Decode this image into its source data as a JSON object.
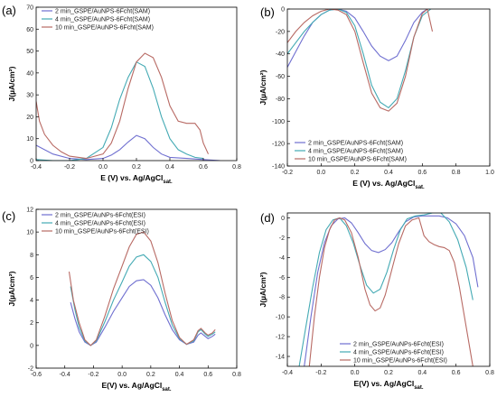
{
  "colors": {
    "blue": "#6f6fd0",
    "teal": "#44aab4",
    "red": "#b86a64",
    "axis": "#000000"
  },
  "chart_data": [
    {
      "panel": "(a)",
      "type": "line",
      "xlabel": "E (V) vs. Ag/AgCl",
      "xlabel_sub": "sat.",
      "ylabel": "J(µA/cm²)",
      "xlim": [
        -0.4,
        0.8
      ],
      "ylim": [
        0,
        70
      ],
      "xticks": [
        -0.4,
        -0.2,
        0.0,
        0.2,
        0.4,
        0.6,
        0.8
      ],
      "yticks": [
        0,
        10,
        20,
        30,
        40,
        50,
        60,
        70
      ],
      "xtick_labels": [
        "-0.4",
        "-0.2",
        "0.0",
        "0.2",
        "0.4",
        "0.6",
        "0.8"
      ],
      "ytick_labels": [
        "0",
        "10",
        "20",
        "30",
        "40",
        "50",
        "60",
        "70"
      ],
      "legend_position": "top-left",
      "series": [
        {
          "name": "2 min_GSPE/AuNPS-6Fcht(SAM)",
          "color": "blue",
          "x": [
            -0.4,
            -0.3,
            -0.2,
            -0.1,
            0.0,
            0.05,
            0.1,
            0.15,
            0.2,
            0.25,
            0.3,
            0.35,
            0.4,
            0.5,
            0.6,
            0.7
          ],
          "y": [
            7,
            3,
            1,
            0.5,
            1,
            2.5,
            5,
            8.5,
            11.5,
            10,
            6,
            3,
            1.5,
            1,
            0.5,
            0
          ]
        },
        {
          "name": "4 min_GSPE/AuNPS-6Fcht(SAM)",
          "color": "teal",
          "x": [
            -0.4,
            -0.3,
            -0.2,
            -0.1,
            0.0,
            0.05,
            0.1,
            0.15,
            0.2,
            0.25,
            0.3,
            0.35,
            0.4,
            0.45,
            0.5,
            0.55,
            0.6
          ],
          "y": [
            0.5,
            0,
            0,
            1,
            6,
            15,
            28,
            38,
            45,
            43,
            33,
            20,
            10,
            5,
            3,
            1.5,
            1
          ]
        },
        {
          "name": "10 min_GSPE/AuNPS-6Fcht(SAM)",
          "color": "red",
          "x": [
            -0.4,
            -0.38,
            -0.35,
            -0.3,
            -0.25,
            -0.2,
            -0.1,
            0.0,
            0.05,
            0.1,
            0.15,
            0.2,
            0.25,
            0.3,
            0.35,
            0.4,
            0.45,
            0.5,
            0.55,
            0.58,
            0.6,
            0.63
          ],
          "y": [
            27,
            18,
            12,
            7,
            4,
            2,
            1,
            3,
            8,
            18,
            33,
            45,
            49,
            47,
            38,
            25,
            18,
            17,
            17,
            14,
            8,
            3
          ]
        }
      ]
    },
    {
      "panel": "(b)",
      "type": "line",
      "xlabel": "E (V) vs. Ag/AgCl",
      "xlabel_sub": "sat.",
      "ylabel": "J(µA/cm²)",
      "xlim": [
        -0.2,
        1.0
      ],
      "ylim": [
        -140,
        0
      ],
      "xticks": [
        -0.2,
        0.0,
        0.2,
        0.4,
        0.6,
        0.8,
        1.0
      ],
      "yticks": [
        -140,
        -120,
        -100,
        -80,
        -60,
        -40,
        -20,
        0
      ],
      "xtick_labels": [
        "-0.2",
        "0.0",
        "0.2",
        "0.4",
        "0.6",
        "0.8",
        "1.0"
      ],
      "ytick_labels": [
        "-140",
        "-120",
        "-100",
        "-80",
        "-60",
        "-40",
        "-20",
        "0"
      ],
      "legend_position": "bottom-left",
      "series": [
        {
          "name": "2 min_GSPE/AuNPS-6Fcht(SAM)",
          "color": "blue",
          "x": [
            -0.2,
            -0.15,
            -0.1,
            -0.05,
            0.0,
            0.05,
            0.1,
            0.15,
            0.2,
            0.25,
            0.3,
            0.35,
            0.4,
            0.45,
            0.5,
            0.55,
            0.6,
            0.63
          ],
          "y": [
            -52,
            -38,
            -24,
            -12,
            -5,
            -1,
            0,
            -2,
            -8,
            -20,
            -33,
            -42,
            -46,
            -42,
            -28,
            -12,
            -3,
            0
          ]
        },
        {
          "name": "4 min_GSPE/AuNPS-6Fcht(SAM)",
          "color": "teal",
          "x": [
            -0.2,
            -0.15,
            -0.1,
            -0.05,
            0.0,
            0.05,
            0.1,
            0.15,
            0.2,
            0.25,
            0.3,
            0.35,
            0.4,
            0.45,
            0.5,
            0.55,
            0.6,
            0.65
          ],
          "y": [
            -40,
            -30,
            -20,
            -12,
            -5,
            -1,
            0,
            -3,
            -15,
            -40,
            -68,
            -83,
            -88,
            -80,
            -55,
            -25,
            -6,
            0
          ]
        },
        {
          "name": "10 min_GSPE/AuNPS-6Fcht(SAM)",
          "color": "red",
          "x": [
            -0.2,
            -0.15,
            -0.1,
            -0.05,
            0.0,
            0.05,
            0.1,
            0.15,
            0.2,
            0.25,
            0.3,
            0.35,
            0.4,
            0.45,
            0.5,
            0.55,
            0.6,
            0.63,
            0.66
          ],
          "y": [
            -30,
            -20,
            -12,
            -6,
            -2,
            0,
            -1,
            -5,
            -20,
            -48,
            -75,
            -88,
            -91,
            -84,
            -60,
            -25,
            -4,
            0,
            -20
          ]
        }
      ]
    },
    {
      "panel": "(c)",
      "type": "line",
      "xlabel": "E(V) vs. Ag/AgCl",
      "xlabel_sub": "sat.",
      "ylabel": "J(µA/cm²)",
      "xlim": [
        -0.6,
        0.8
      ],
      "ylim": [
        -2,
        12
      ],
      "xticks": [
        -0.6,
        -0.4,
        -0.2,
        0.0,
        0.2,
        0.4,
        0.6,
        0.8
      ],
      "yticks": [
        -2,
        0,
        2,
        4,
        6,
        8,
        10,
        12
      ],
      "xtick_labels": [
        "-0.6",
        "-0.4",
        "-0.2",
        "0.0",
        "0.2",
        "0.4",
        "0.6",
        "0.8"
      ],
      "ytick_labels": [
        "-2",
        "0",
        "2",
        "4",
        "6",
        "8",
        "10",
        "12"
      ],
      "legend_position": "top-left",
      "series": [
        {
          "name": "2 min_GSPE/AuNPs-6Fcht(ESI)",
          "color": "blue",
          "x": [
            -0.36,
            -0.33,
            -0.3,
            -0.26,
            -0.22,
            -0.18,
            -0.12,
            -0.06,
            0.0,
            0.05,
            0.1,
            0.15,
            0.2,
            0.25,
            0.3,
            0.35,
            0.4,
            0.45,
            0.5,
            0.53,
            0.55,
            0.58,
            0.6,
            0.63,
            0.65
          ],
          "y": [
            3.8,
            2.4,
            1.2,
            0.3,
            0,
            0.3,
            1.6,
            3.0,
            4.2,
            5.2,
            5.7,
            5.8,
            5.3,
            4.2,
            2.7,
            1.4,
            0.5,
            0.1,
            0.3,
            0.9,
            1.1,
            0.8,
            0.6,
            0.8,
            1.0
          ]
        },
        {
          "name": "4 min_GSPE/AuNPs-6Fcht(ESI)",
          "color": "teal",
          "x": [
            -0.36,
            -0.33,
            -0.3,
            -0.26,
            -0.22,
            -0.18,
            -0.12,
            -0.06,
            0.0,
            0.05,
            0.1,
            0.15,
            0.2,
            0.25,
            0.3,
            0.35,
            0.4,
            0.45,
            0.5,
            0.53,
            0.55,
            0.58,
            0.6,
            0.63,
            0.65
          ],
          "y": [
            5.2,
            3.2,
            1.6,
            0.4,
            0,
            0.4,
            2.1,
            4.0,
            5.6,
            7.0,
            7.8,
            8.0,
            7.4,
            6.0,
            3.8,
            1.8,
            0.6,
            0.1,
            0.4,
            1.2,
            1.4,
            1.0,
            0.8,
            1.0,
            1.2
          ]
        },
        {
          "name": "10 min_GSPE/AuNPs-6Fcht(ESI)",
          "color": "red",
          "x": [
            -0.37,
            -0.34,
            -0.3,
            -0.26,
            -0.22,
            -0.18,
            -0.12,
            -0.06,
            0.0,
            0.05,
            0.1,
            0.15,
            0.2,
            0.25,
            0.3,
            0.35,
            0.4,
            0.45,
            0.5,
            0.53,
            0.55,
            0.58,
            0.6,
            0.63,
            0.65
          ],
          "y": [
            6.5,
            4.0,
            2.0,
            0.5,
            0,
            0.5,
            2.6,
            5.0,
            7.0,
            8.7,
            9.8,
            10.0,
            9.2,
            7.3,
            4.6,
            2.2,
            0.7,
            0.1,
            0.5,
            1.3,
            1.5,
            1.1,
            0.9,
            1.1,
            1.4
          ]
        }
      ]
    },
    {
      "panel": "(d)",
      "type": "line",
      "xlabel": "E(V) vs. Ag/AgCl",
      "xlabel_sub": "sat.",
      "ylabel": "J(µA/cm²)",
      "xlim": [
        -0.4,
        0.8
      ],
      "ylim": [
        -15,
        0.5
      ],
      "xticks": [
        -0.4,
        -0.2,
        0.0,
        0.2,
        0.4,
        0.6,
        0.8
      ],
      "yticks": [
        -14,
        -12,
        -10,
        -8,
        -6,
        -4,
        -2,
        0
      ],
      "xtick_labels": [
        "-0.4",
        "-0.2",
        "0.0",
        "0.2",
        "0.4",
        "0.6",
        "0.8"
      ],
      "ytick_labels": [
        "-14",
        "-12",
        "-10",
        "-8",
        "-6",
        "-4",
        "-2",
        "0"
      ],
      "legend_position": "bottom-right",
      "series": [
        {
          "name": "2 min_GSPE/AuNPs-6Fcht(ESI)",
          "color": "blue",
          "x": [
            -0.3,
            -0.26,
            -0.22,
            -0.18,
            -0.14,
            -0.1,
            -0.06,
            -0.02,
            0.02,
            0.06,
            0.1,
            0.14,
            0.18,
            0.22,
            0.26,
            0.3,
            0.35,
            0.4,
            0.45,
            0.5,
            0.55,
            0.6,
            0.65,
            0.7,
            0.73
          ],
          "y": [
            -15,
            -10,
            -5.5,
            -2.5,
            -0.8,
            -0.1,
            0,
            -0.5,
            -1.5,
            -2.6,
            -3.3,
            -3.5,
            -3.2,
            -2.5,
            -1.4,
            -0.4,
            0.1,
            0.2,
            0.2,
            0.2,
            0,
            -0.6,
            -1.8,
            -4.0,
            -7.0
          ]
        },
        {
          "name": "4 min_GSPE/AuNPs-6Fcht(ESI)",
          "color": "teal",
          "x": [
            -0.33,
            -0.29,
            -0.25,
            -0.21,
            -0.17,
            -0.13,
            -0.09,
            -0.05,
            -0.01,
            0.03,
            0.07,
            0.11,
            0.15,
            0.19,
            0.23,
            0.27,
            0.31,
            0.36,
            0.41,
            0.46,
            0.51,
            0.56,
            0.61,
            0.66,
            0.7
          ],
          "y": [
            -15,
            -11,
            -7,
            -3.5,
            -1.2,
            -0.2,
            0,
            -0.8,
            -2.5,
            -4.8,
            -6.8,
            -7.6,
            -7.2,
            -5.5,
            -3.2,
            -1.2,
            -0.1,
            0.2,
            0.3,
            0.5,
            0.5,
            -0.4,
            -2.2,
            -5.0,
            -8.3
          ]
        },
        {
          "name": "10 min_GSPE/AuNPs-6Fcht(ESI)",
          "color": "red",
          "x": [
            -0.27,
            -0.24,
            -0.21,
            -0.18,
            -0.15,
            -0.12,
            -0.09,
            -0.06,
            -0.02,
            0.02,
            0.06,
            0.09,
            0.12,
            0.15,
            0.18,
            0.22,
            0.26,
            0.3,
            0.34,
            0.38,
            0.41,
            0.44,
            0.47,
            0.5,
            0.53,
            0.56,
            0.59,
            0.62,
            0.65,
            0.68,
            0.7
          ],
          "y": [
            -15,
            -10,
            -6,
            -3,
            -1.2,
            -0.2,
            0,
            -0.2,
            -1.5,
            -4.0,
            -7.2,
            -8.8,
            -9.4,
            -9.1,
            -7.8,
            -5.2,
            -2.6,
            -0.8,
            -0.2,
            0,
            -1.8,
            -2.4,
            -2.7,
            -2.9,
            -3.0,
            -3.3,
            -4.5,
            -7.0,
            -10.0,
            -13.0,
            -15
          ]
        }
      ]
    }
  ]
}
